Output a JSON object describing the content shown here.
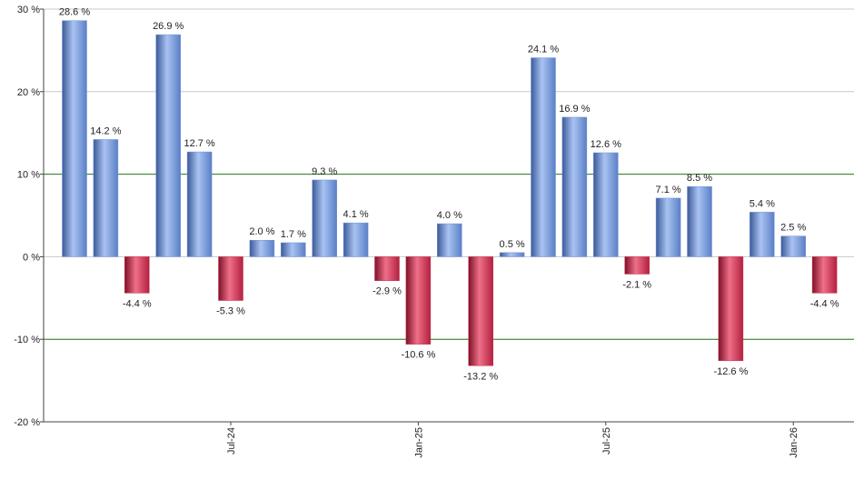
{
  "chart_data": {
    "type": "bar",
    "categories": [
      null,
      null,
      null,
      null,
      null,
      "Jul-24",
      null,
      null,
      null,
      null,
      null,
      "Jan-25",
      null,
      null,
      null,
      null,
      null,
      "Jul-25",
      null,
      null,
      null,
      null,
      null,
      "Jan-26",
      null
    ],
    "values": [
      28.6,
      14.2,
      -4.4,
      26.9,
      12.7,
      -5.3,
      2.0,
      1.7,
      9.3,
      4.1,
      -2.9,
      -10.6,
      4.0,
      -13.2,
      0.5,
      24.1,
      16.9,
      12.6,
      -2.1,
      7.1,
      8.5,
      -12.6,
      5.4,
      2.5,
      -4.4
    ],
    "value_labels": [
      "28.6 %",
      "14.2 %",
      "-4.4 %",
      "26.9 %",
      "12.7 %",
      "-5.3 %",
      "2.0 %",
      "1.7 %",
      "9.3 %",
      "4.1 %",
      "-2.9 %",
      "-10.6 %",
      "4.0 %",
      "-13.2 %",
      "0.5 %",
      "24.1 %",
      "16.9 %",
      "12.6 %",
      "-2.1 %",
      "7.1 %",
      "8.5 %",
      "-12.6 %",
      "5.4 %",
      "2.5 %",
      "-4.4 %"
    ],
    "positive_color": "#6f93d8",
    "negative_color": "#c8304e",
    "ylim": [
      -20,
      30
    ],
    "yticks": [
      {
        "value": -20,
        "label": "-20 %"
      },
      {
        "value": -10,
        "label": "-10 %"
      },
      {
        "value": 0,
        "label": "0 %"
      },
      {
        "value": 10,
        "label": "10 %"
      },
      {
        "value": 20,
        "label": "20 %"
      },
      {
        "value": 30,
        "label": "30 %"
      }
    ],
    "grid": true,
    "grid_color": "#c8c8c8",
    "reference_lines": [
      -10,
      10
    ],
    "reference_color": "#2e7d1e"
  }
}
